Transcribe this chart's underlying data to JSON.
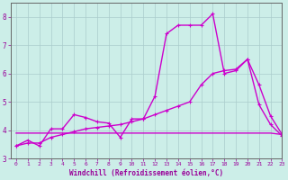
{
  "title": "",
  "xlabel": "Windchill (Refroidissement éolien,°C)",
  "ylabel": "",
  "bg_color": "#cceee8",
  "grid_color": "#aacccc",
  "line_color": "#cc00cc",
  "text_color": "#990099",
  "xlim": [
    -0.5,
    23
  ],
  "ylim": [
    3.0,
    8.5
  ],
  "xticks": [
    0,
    1,
    2,
    3,
    4,
    5,
    6,
    7,
    8,
    9,
    10,
    11,
    12,
    13,
    14,
    15,
    16,
    17,
    18,
    19,
    20,
    21,
    22,
    23
  ],
  "yticks": [
    3,
    4,
    5,
    6,
    7,
    8
  ],
  "line1_x": [
    0,
    1,
    2,
    3,
    4,
    5,
    6,
    7,
    8,
    9,
    10,
    11,
    12,
    13,
    14,
    15,
    16,
    17,
    18,
    19,
    20,
    21,
    22,
    23
  ],
  "line1_y": [
    3.45,
    3.65,
    3.45,
    4.05,
    4.05,
    4.55,
    4.45,
    4.3,
    4.25,
    3.75,
    4.4,
    4.4,
    5.2,
    7.4,
    7.7,
    7.7,
    7.7,
    8.1,
    6.0,
    6.1,
    6.5,
    4.9,
    4.2,
    3.8
  ],
  "line2_x": [
    0,
    1,
    2,
    3,
    4,
    5,
    6,
    7,
    8,
    9,
    10,
    11,
    12,
    13,
    14,
    15,
    16,
    17,
    18,
    19,
    20,
    21,
    22,
    23
  ],
  "line2_y": [
    3.45,
    3.55,
    3.55,
    3.75,
    3.85,
    3.95,
    4.05,
    4.1,
    4.15,
    4.2,
    4.3,
    4.4,
    4.55,
    4.7,
    4.85,
    5.0,
    5.6,
    6.0,
    6.1,
    6.15,
    6.5,
    5.6,
    4.5,
    3.85
  ],
  "line3_x": [
    0,
    1,
    2,
    3,
    4,
    5,
    6,
    7,
    8,
    9,
    10,
    11,
    12,
    13,
    14,
    15,
    16,
    17,
    18,
    19,
    20,
    21,
    22,
    23
  ],
  "line3_y": [
    3.9,
    3.9,
    3.9,
    3.9,
    3.9,
    3.9,
    3.9,
    3.9,
    3.9,
    3.9,
    3.9,
    3.9,
    3.9,
    3.9,
    3.9,
    3.9,
    3.9,
    3.9,
    3.9,
    3.9,
    3.9,
    3.9,
    3.9,
    3.85
  ],
  "markersize": 3,
  "linewidth": 1.0
}
